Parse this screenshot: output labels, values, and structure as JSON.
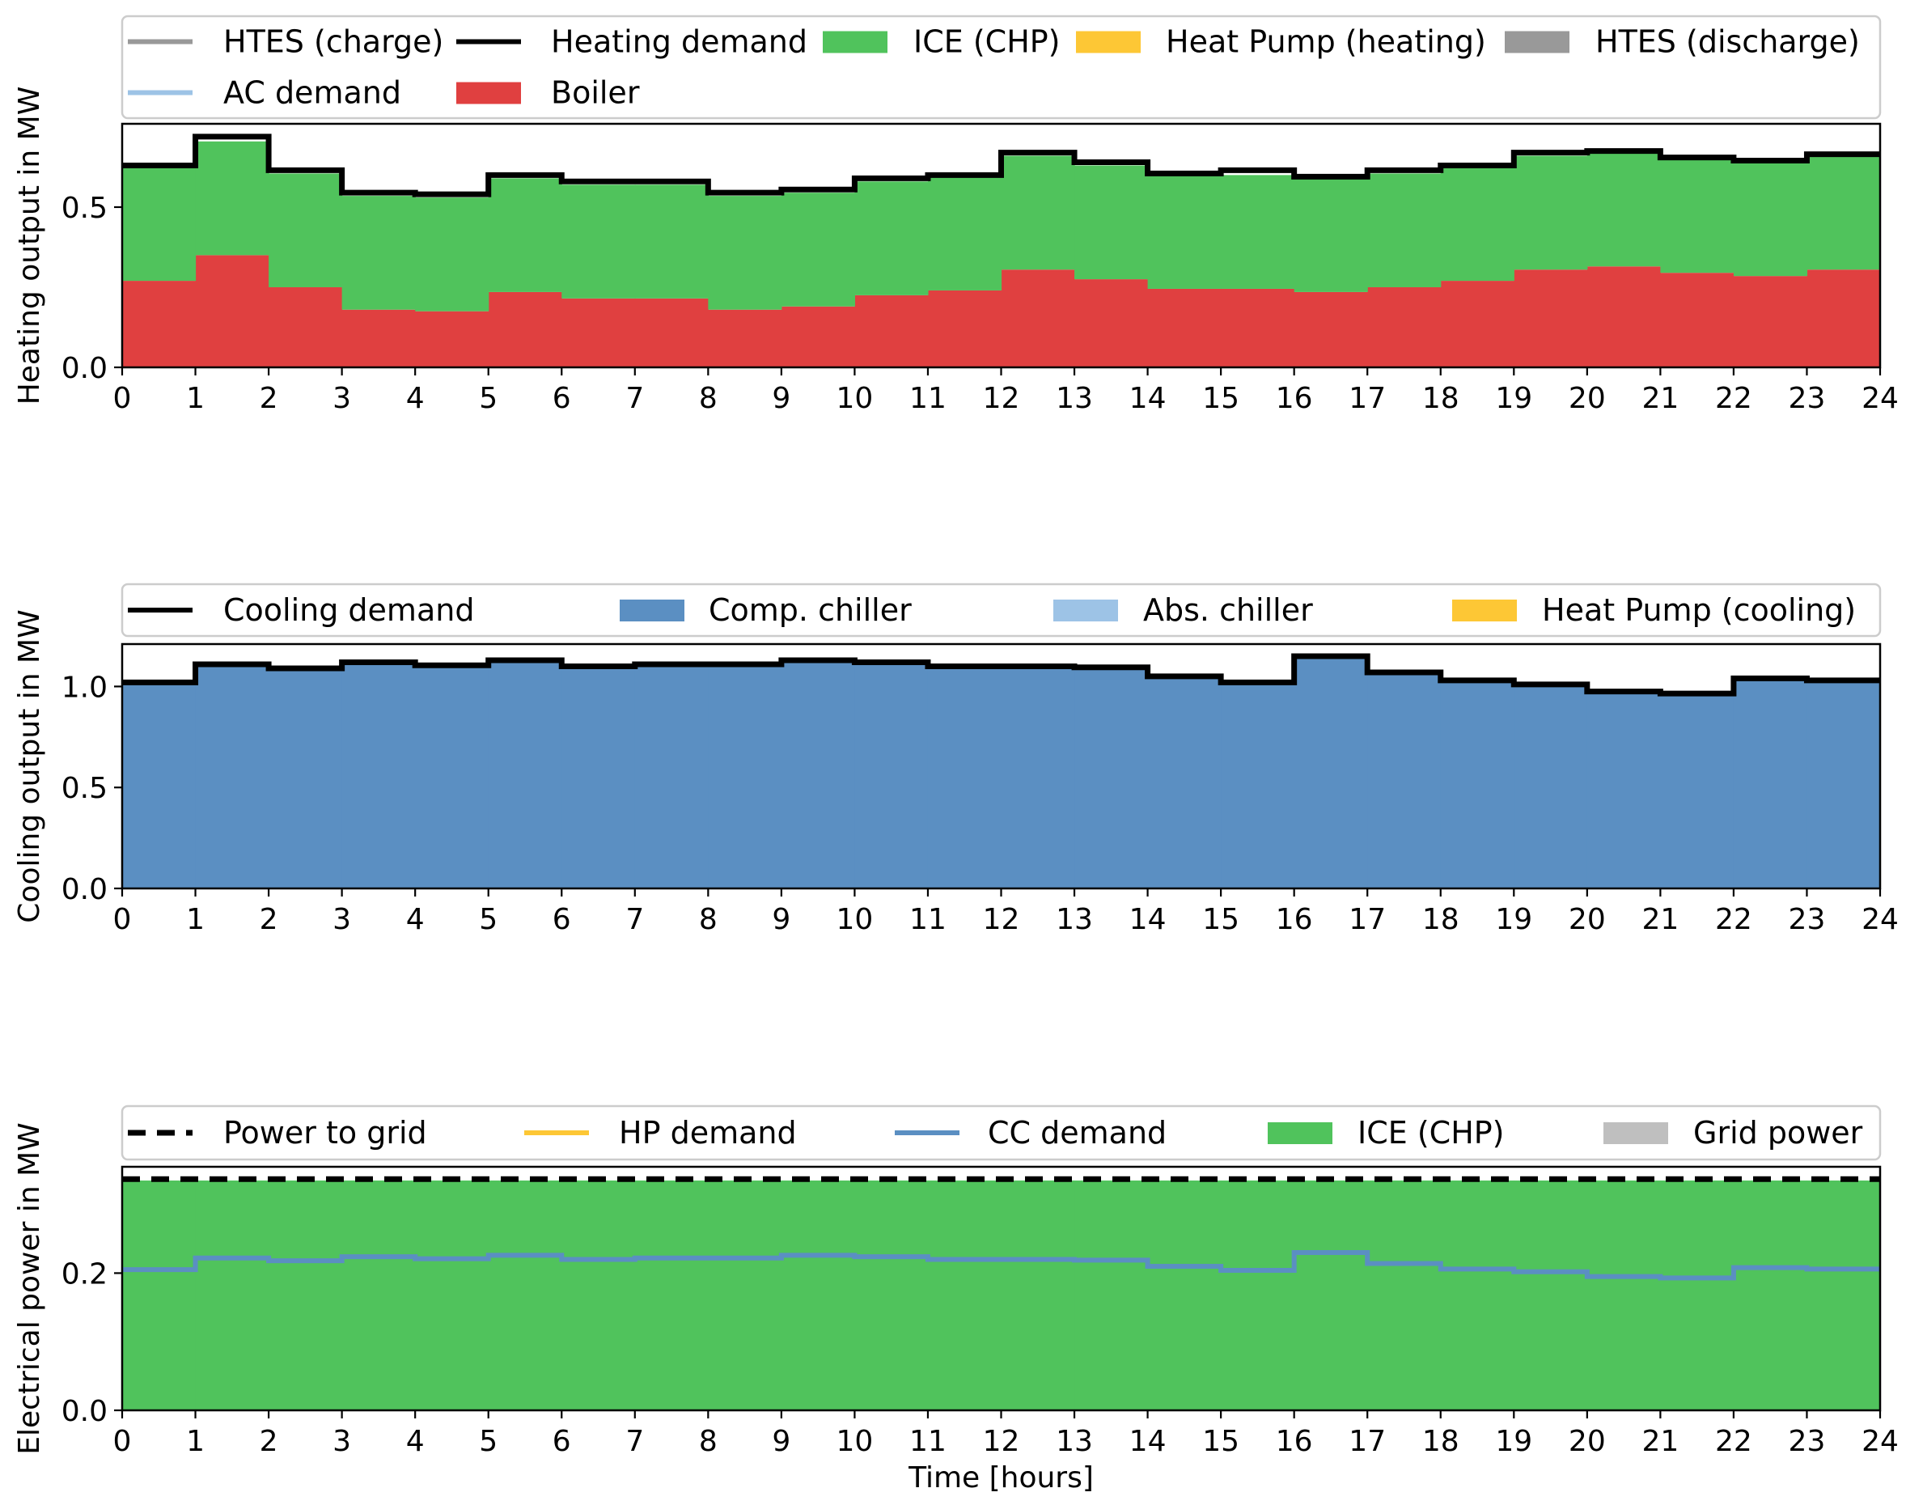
{
  "chart_data": [
    {
      "type": "area",
      "step": "post",
      "ylabel": "Heating output in MW",
      "xlabel": "",
      "xlim": [
        0,
        24
      ],
      "ylim": [
        0,
        0.76
      ],
      "yticks": [
        0.0,
        0.5
      ],
      "xticks": [
        0,
        1,
        2,
        3,
        4,
        5,
        6,
        7,
        8,
        9,
        10,
        11,
        12,
        13,
        14,
        15,
        16,
        17,
        18,
        19,
        20,
        21,
        22,
        23,
        24
      ],
      "legend_location": "above",
      "legend": [
        {
          "label": "HTES (charge)",
          "kind": "line",
          "color": "#999999",
          "dash": "solid"
        },
        {
          "label": "Heating demand",
          "kind": "line",
          "color": "#000000",
          "dash": "solid"
        },
        {
          "label": "ICE (CHP)",
          "kind": "patch",
          "color": "#50c35c"
        },
        {
          "label": "Heat Pump (heating)",
          "kind": "patch",
          "color": "#fdc735"
        },
        {
          "label": "HTES (discharge)",
          "kind": "patch",
          "color": "#999999"
        },
        {
          "label": "AC demand",
          "kind": "line",
          "color": "#9dc3e6",
          "dash": "solid"
        },
        {
          "label": "Boiler",
          "kind": "patch",
          "color": "#e04040"
        }
      ],
      "stack": [
        {
          "name": "Boiler",
          "color": "#e04040",
          "values": [
            0.27,
            0.35,
            0.25,
            0.18,
            0.175,
            0.235,
            0.215,
            0.215,
            0.18,
            0.19,
            0.225,
            0.24,
            0.305,
            0.275,
            0.245,
            0.245,
            0.235,
            0.25,
            0.27,
            0.305,
            0.315,
            0.295,
            0.285,
            0.305
          ]
        },
        {
          "name": "ICE (CHP)",
          "color": "#50c35c",
          "values": [
            0.355,
            0.355,
            0.355,
            0.355,
            0.355,
            0.355,
            0.355,
            0.355,
            0.355,
            0.355,
            0.355,
            0.355,
            0.355,
            0.355,
            0.355,
            0.355,
            0.355,
            0.355,
            0.355,
            0.355,
            0.355,
            0.355,
            0.355,
            0.355
          ]
        }
      ],
      "lines": [
        {
          "name": "Heating demand",
          "color": "#000000",
          "width": 7,
          "dash": "solid",
          "values": [
            0.63,
            0.72,
            0.615,
            0.545,
            0.54,
            0.6,
            0.58,
            0.58,
            0.545,
            0.555,
            0.59,
            0.6,
            0.67,
            0.64,
            0.605,
            0.615,
            0.595,
            0.615,
            0.63,
            0.67,
            0.675,
            0.655,
            0.645,
            0.665
          ]
        }
      ]
    },
    {
      "type": "area",
      "step": "post",
      "ylabel": "Cooling output in MW",
      "xlabel": "",
      "xlim": [
        0,
        24
      ],
      "ylim": [
        0,
        1.21
      ],
      "yticks": [
        0.0,
        0.5,
        1.0
      ],
      "xticks": [
        0,
        1,
        2,
        3,
        4,
        5,
        6,
        7,
        8,
        9,
        10,
        11,
        12,
        13,
        14,
        15,
        16,
        17,
        18,
        19,
        20,
        21,
        22,
        23,
        24
      ],
      "legend_location": "above",
      "legend": [
        {
          "label": "Cooling demand",
          "kind": "line",
          "color": "#000000",
          "dash": "solid"
        },
        {
          "label": "Comp. chiller",
          "kind": "patch",
          "color": "#5b8fc2"
        },
        {
          "label": "Abs. chiller",
          "kind": "patch",
          "color": "#9dc3e6"
        },
        {
          "label": "Heat Pump (cooling)",
          "kind": "patch",
          "color": "#fdc735"
        }
      ],
      "stack": [
        {
          "name": "Comp. chiller",
          "color": "#5b8fc2",
          "values": [
            1.02,
            1.11,
            1.09,
            1.12,
            1.105,
            1.13,
            1.1,
            1.11,
            1.11,
            1.13,
            1.12,
            1.1,
            1.1,
            1.095,
            1.05,
            1.02,
            1.15,
            1.07,
            1.03,
            1.01,
            0.975,
            0.965,
            1.04,
            1.03
          ]
        }
      ],
      "lines": [
        {
          "name": "Cooling demand",
          "color": "#000000",
          "width": 7,
          "dash": "solid",
          "values": [
            1.02,
            1.11,
            1.09,
            1.12,
            1.105,
            1.13,
            1.1,
            1.11,
            1.11,
            1.13,
            1.12,
            1.1,
            1.1,
            1.095,
            1.05,
            1.02,
            1.15,
            1.07,
            1.03,
            1.01,
            0.975,
            0.965,
            1.04,
            1.03
          ]
        }
      ]
    },
    {
      "type": "area",
      "step": "post",
      "ylabel": "Electrical power in MW",
      "xlabel": "Time [hours]",
      "xlim": [
        0,
        24
      ],
      "ylim": [
        0,
        0.355
      ],
      "yticks": [
        0.0,
        0.2
      ],
      "xticks": [
        0,
        1,
        2,
        3,
        4,
        5,
        6,
        7,
        8,
        9,
        10,
        11,
        12,
        13,
        14,
        15,
        16,
        17,
        18,
        19,
        20,
        21,
        22,
        23,
        24
      ],
      "legend_location": "above",
      "legend": [
        {
          "label": "Power to grid",
          "kind": "line",
          "color": "#000000",
          "dash": "dashed"
        },
        {
          "label": "HP demand",
          "kind": "line",
          "color": "#fdc735",
          "dash": "solid"
        },
        {
          "label": "CC demand",
          "kind": "line",
          "color": "#5b8fc2",
          "dash": "solid"
        },
        {
          "label": "ICE (CHP)",
          "kind": "patch",
          "color": "#50c35c"
        },
        {
          "label": "Grid power",
          "kind": "patch",
          "color": "#bfbfbf"
        }
      ],
      "stack": [
        {
          "name": "ICE (CHP)",
          "color": "#50c35c",
          "values": [
            0.335,
            0.335,
            0.335,
            0.335,
            0.335,
            0.335,
            0.335,
            0.335,
            0.335,
            0.335,
            0.335,
            0.335,
            0.335,
            0.335,
            0.335,
            0.335,
            0.335,
            0.335,
            0.335,
            0.335,
            0.335,
            0.335,
            0.335,
            0.335
          ]
        }
      ],
      "lines": [
        {
          "name": "CC demand",
          "color": "#5b8fc2",
          "width": 6,
          "dash": "solid",
          "values": [
            0.205,
            0.222,
            0.218,
            0.224,
            0.221,
            0.226,
            0.22,
            0.222,
            0.222,
            0.226,
            0.224,
            0.22,
            0.22,
            0.219,
            0.21,
            0.204,
            0.23,
            0.214,
            0.206,
            0.202,
            0.195,
            0.193,
            0.208,
            0.206
          ]
        },
        {
          "name": "Power to grid",
          "color": "#000000",
          "width": 7,
          "dash": "dashed",
          "values": [
            0.337,
            0.337,
            0.337,
            0.337,
            0.337,
            0.337,
            0.337,
            0.337,
            0.337,
            0.337,
            0.337,
            0.337,
            0.337,
            0.337,
            0.337,
            0.337,
            0.337,
            0.337,
            0.337,
            0.337,
            0.337,
            0.337,
            0.337,
            0.337
          ]
        }
      ]
    }
  ]
}
